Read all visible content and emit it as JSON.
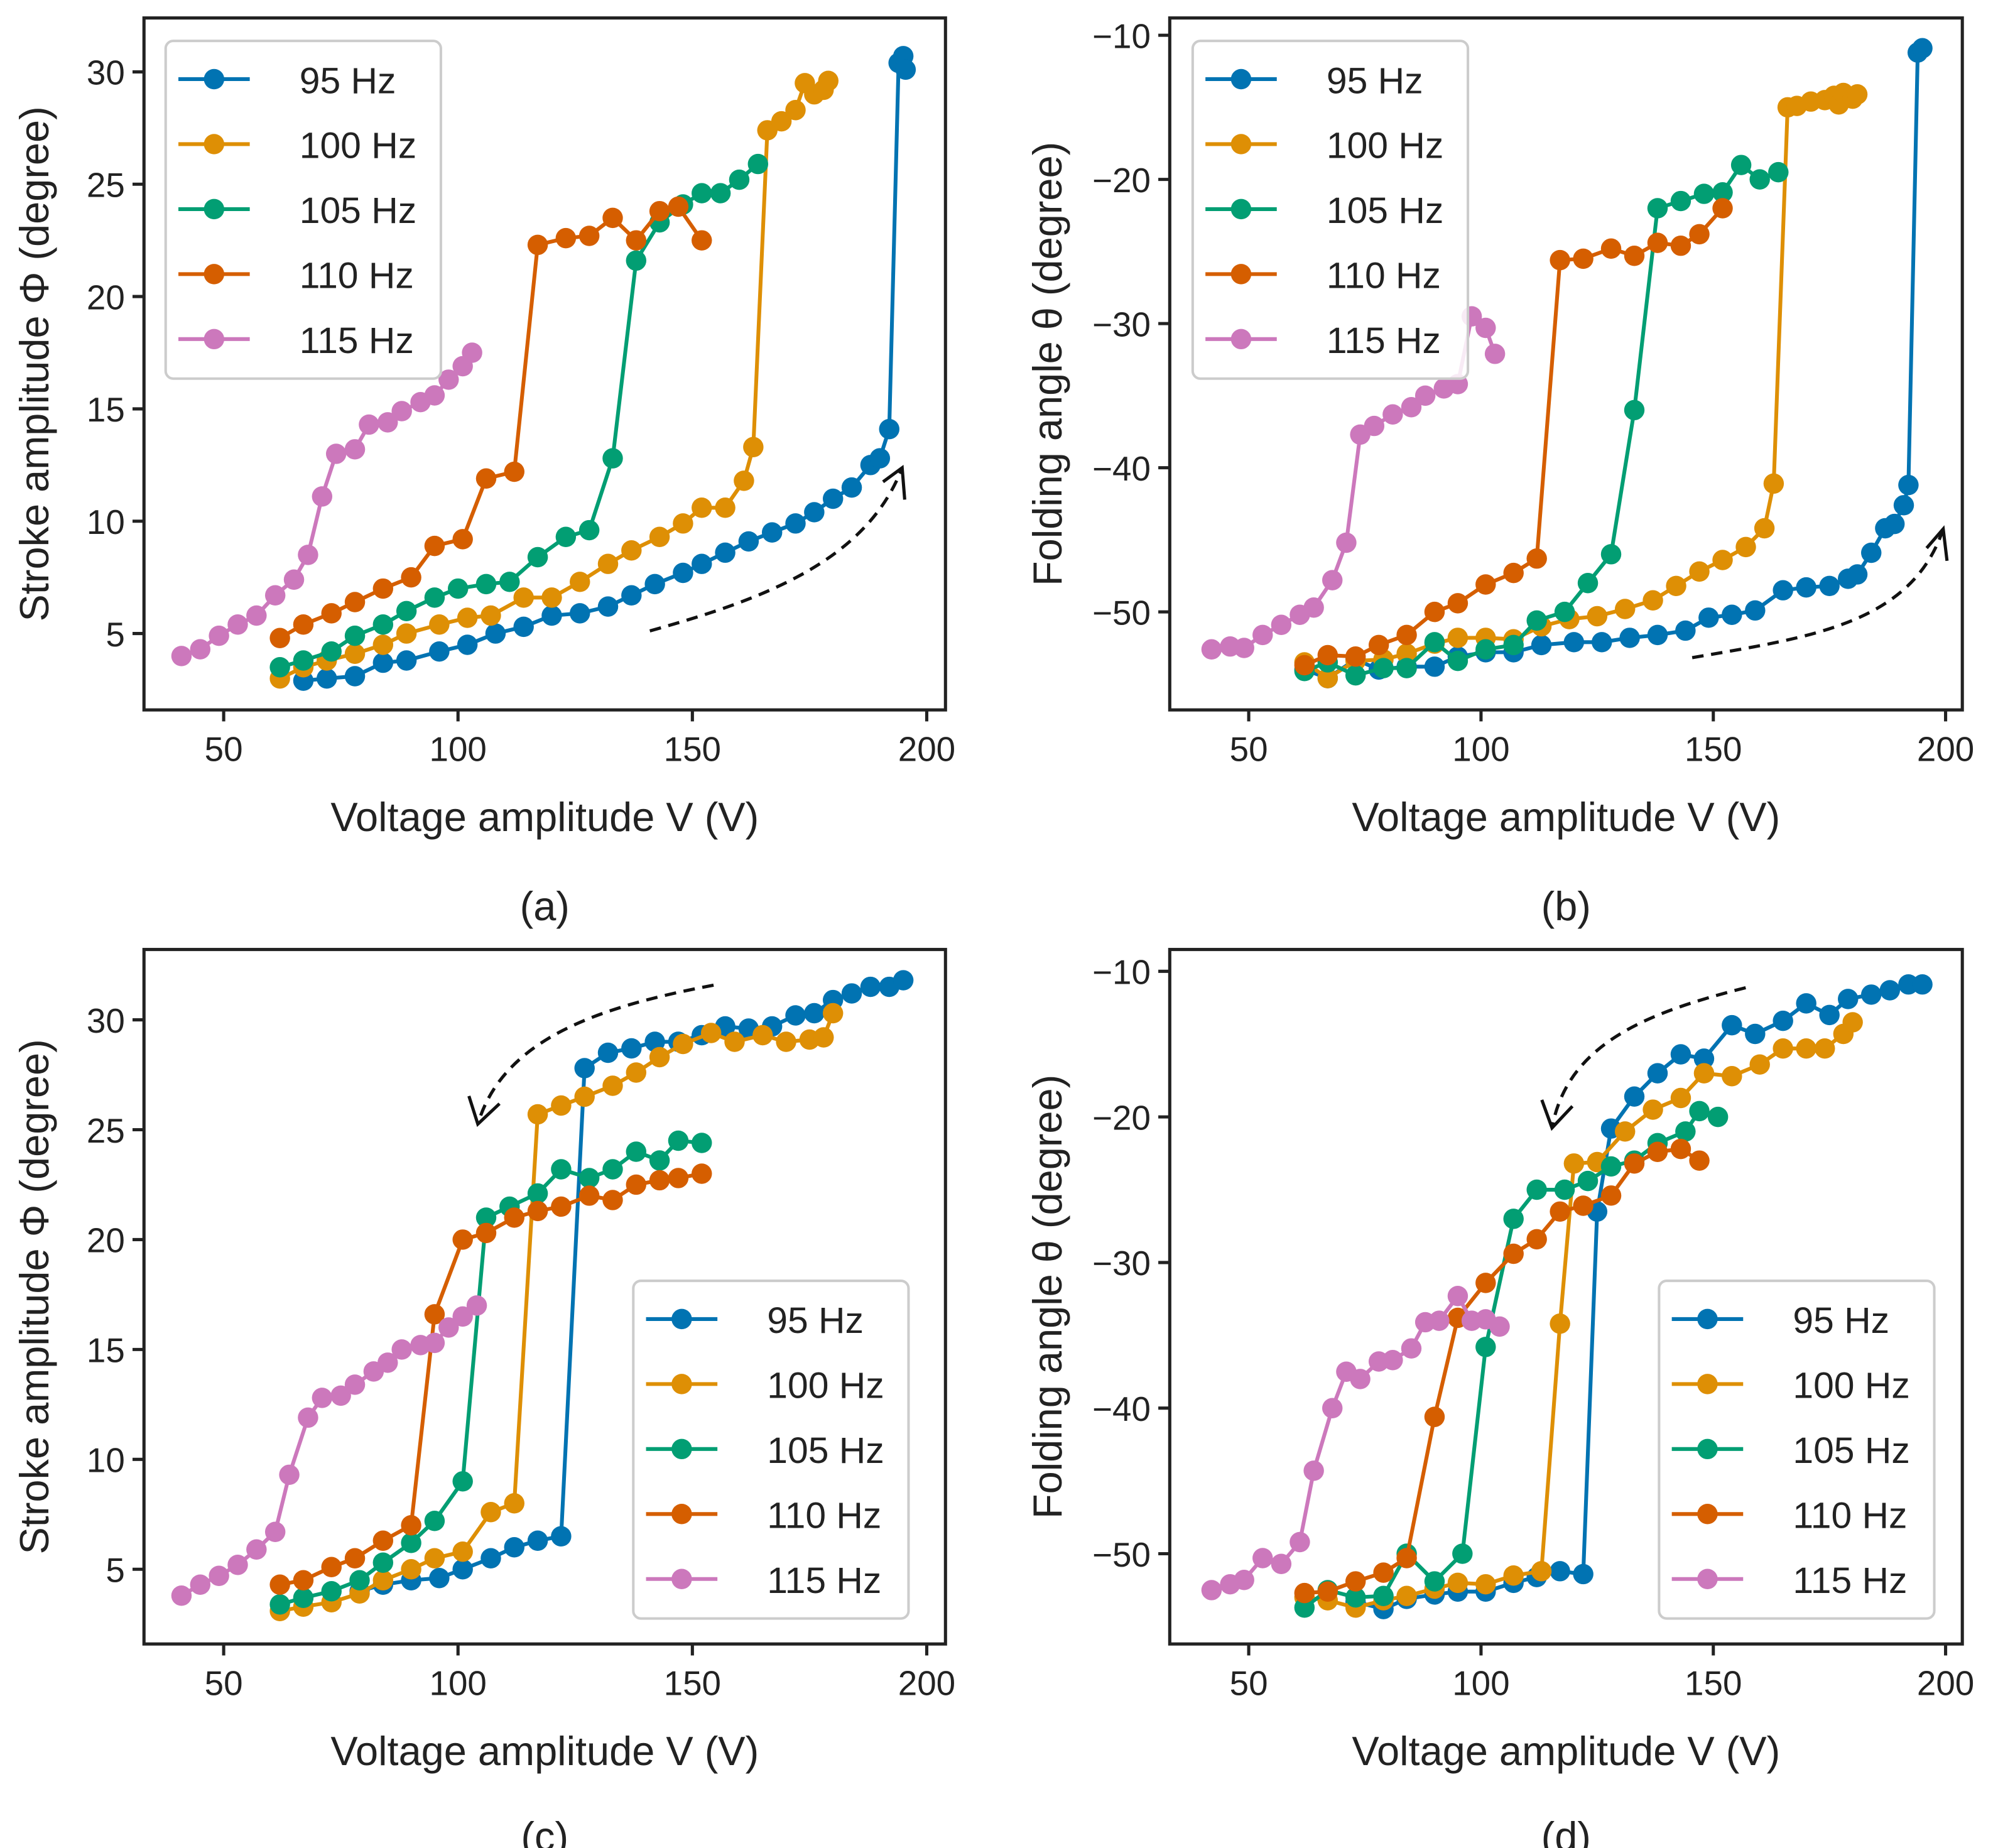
{
  "colors": {
    "95 Hz": "#0173b2",
    "100 Hz": "#de8f05",
    "105 Hz": "#029e73",
    "110 Hz": "#d55e00",
    "115 Hz": "#cc78bc"
  },
  "chart_data": [
    {
      "type": "line",
      "caption": "(a)",
      "xlabel": "Voltage amplitude V (V)",
      "ylabel": "Stroke amplitude Φ (degree)",
      "xlim": [
        33,
        204
      ],
      "ylim": [
        1.6,
        32.4
      ],
      "xticks": [
        50,
        100,
        150,
        200
      ],
      "yticks": [
        5,
        10,
        15,
        20,
        25,
        30
      ],
      "legend": "upper-left",
      "annotation": "dashed arrow pointing up-right (increasing voltage)",
      "series": [
        {
          "name": "95 Hz",
          "x": [
            67,
            72,
            78,
            84,
            89,
            96,
            102,
            108,
            114,
            120,
            126,
            132,
            137,
            142,
            148,
            152,
            157,
            162,
            167,
            172,
            176,
            180,
            184,
            188,
            190,
            192,
            194,
            195,
            195.5
          ],
          "y": [
            2.9,
            3.0,
            3.1,
            3.7,
            3.8,
            4.2,
            4.5,
            5.0,
            5.3,
            5.8,
            5.9,
            6.2,
            6.7,
            7.2,
            7.7,
            8.1,
            8.6,
            9.1,
            9.5,
            9.9,
            10.4,
            11.0,
            11.5,
            12.5,
            12.8,
            14.1,
            30.4,
            30.7,
            30.1
          ]
        },
        {
          "name": "100 Hz",
          "x": [
            62,
            67,
            72,
            78,
            84,
            89,
            96,
            102,
            107,
            114,
            120,
            126,
            132,
            137,
            143,
            148,
            152,
            157,
            161,
            163,
            166,
            169,
            172,
            174,
            176,
            178,
            179
          ],
          "y": [
            3.0,
            3.5,
            3.8,
            4.1,
            4.5,
            5.0,
            5.4,
            5.7,
            5.8,
            6.6,
            6.6,
            7.3,
            8.1,
            8.7,
            9.3,
            9.9,
            10.6,
            10.6,
            11.8,
            13.3,
            27.4,
            27.8,
            28.3,
            29.5,
            29.0,
            29.2,
            29.6
          ]
        },
        {
          "name": "105 Hz",
          "x": [
            62,
            67,
            73,
            78,
            84,
            89,
            95,
            100,
            106,
            111,
            117,
            123,
            128,
            133,
            138,
            143,
            148,
            152,
            156,
            160,
            164
          ],
          "y": [
            3.5,
            3.8,
            4.2,
            4.9,
            5.4,
            6.0,
            6.6,
            7.0,
            7.2,
            7.3,
            8.4,
            9.3,
            9.6,
            12.8,
            21.6,
            23.3,
            24.1,
            24.6,
            24.6,
            25.2,
            25.9
          ]
        },
        {
          "name": "110 Hz",
          "x": [
            62,
            67,
            73,
            78,
            84,
            90,
            95,
            101,
            106,
            112,
            117,
            123,
            128,
            133,
            138,
            143,
            147,
            152
          ],
          "y": [
            4.8,
            5.4,
            5.9,
            6.4,
            7.0,
            7.5,
            8.9,
            9.2,
            11.9,
            12.2,
            22.3,
            22.6,
            22.7,
            23.5,
            22.5,
            23.8,
            24.0,
            22.5
          ]
        },
        {
          "name": "115 Hz",
          "x": [
            41,
            45,
            49,
            53,
            57,
            61,
            65,
            68,
            71,
            74,
            78,
            81,
            85,
            88,
            92,
            95,
            98,
            101,
            103
          ],
          "y": [
            4.0,
            4.3,
            4.9,
            5.4,
            5.8,
            6.7,
            7.4,
            8.5,
            11.1,
            13.0,
            13.2,
            14.3,
            14.4,
            14.9,
            15.3,
            15.6,
            16.3,
            16.9,
            17.5
          ]
        }
      ]
    },
    {
      "type": "line",
      "caption": "(b)",
      "xlabel": "Voltage amplitude V (V)",
      "ylabel": "Folding angle θ (degree)",
      "xlim": [
        33,
        203.6
      ],
      "ylim": [
        -56.8,
        -8.8
      ],
      "xticks": [
        50,
        100,
        150,
        200
      ],
      "yticks": [
        -50,
        -40,
        -30,
        -20,
        -10
      ],
      "legend": "upper-left",
      "annotation": "dashed arrow pointing up-right (increasing voltage)",
      "series": [
        {
          "name": "95 Hz",
          "x": [
            62,
            67,
            73,
            78,
            84,
            90,
            95,
            101,
            107,
            113,
            120,
            126,
            132,
            138,
            144,
            149,
            154,
            159,
            165,
            170,
            175,
            179,
            181,
            184,
            187,
            189,
            191,
            192,
            194,
            195
          ],
          "y": [
            -54,
            -54.6,
            -53.3,
            -54,
            -53.8,
            -53.8,
            -53.1,
            -52.8,
            -52.8,
            -52.3,
            -52.1,
            -52.1,
            -51.8,
            -51.6,
            -51.3,
            -50.4,
            -50.2,
            -49.9,
            -48.5,
            -48.3,
            -48.2,
            -47.7,
            -47.4,
            -45.9,
            -44.2,
            -43.9,
            -42.6,
            -41.2,
            -11.2,
            -10.9
          ]
        },
        {
          "name": "100 Hz",
          "x": [
            62,
            67,
            73,
            79,
            84,
            90,
            95,
            101,
            107,
            113,
            119,
            125,
            131,
            137,
            142,
            147,
            152,
            157,
            161,
            163,
            166,
            168,
            171,
            174,
            176,
            177,
            178,
            180,
            181
          ],
          "y": [
            -53.5,
            -54.6,
            -53.4,
            -53.3,
            -52.9,
            -52.2,
            -51.8,
            -51.8,
            -51.9,
            -51.0,
            -50.5,
            -50.3,
            -49.8,
            -49.2,
            -48.2,
            -47.2,
            -46.4,
            -45.5,
            -44.2,
            -41.1,
            -15.0,
            -14.9,
            -14.6,
            -14.5,
            -14.2,
            -14.8,
            -14.0,
            -14.4,
            -14.1
          ]
        },
        {
          "name": "105 Hz",
          "x": [
            62,
            67,
            73,
            79,
            84,
            90,
            95,
            101,
            107,
            112,
            118,
            123,
            128,
            133,
            138,
            143,
            148,
            152,
            156,
            160,
            164
          ],
          "y": [
            -54.1,
            -53.5,
            -54.4,
            -53.9,
            -53.9,
            -52.1,
            -53.4,
            -52.6,
            -52.3,
            -50.6,
            -50.0,
            -48.0,
            -46.0,
            -36.0,
            -22.0,
            -21.5,
            -21.0,
            -20.9,
            -19.0,
            -20.0,
            -19.5
          ]
        },
        {
          "name": "110 Hz",
          "x": [
            62,
            67,
            73,
            78,
            84,
            90,
            95,
            101,
            107,
            112,
            117,
            122,
            128,
            133,
            138,
            143,
            147,
            152
          ],
          "y": [
            -53.7,
            -53.0,
            -53.1,
            -52.3,
            -51.6,
            -50.0,
            -49.4,
            -48.1,
            -47.3,
            -46.3,
            -25.6,
            -25.5,
            -24.8,
            -25.3,
            -24.4,
            -24.6,
            -23.8,
            -22.0
          ]
        },
        {
          "name": "115 Hz",
          "x": [
            42,
            46,
            49,
            53,
            57,
            61,
            64,
            68,
            71,
            74,
            77,
            81,
            85,
            88,
            92,
            95,
            98,
            101,
            103
          ],
          "y": [
            -52.6,
            -52.4,
            -52.5,
            -51.6,
            -50.9,
            -50.2,
            -49.7,
            -47.8,
            -45.2,
            -37.7,
            -37.1,
            -36.3,
            -35.8,
            -35.0,
            -34.5,
            -34.2,
            -29.5,
            -30.3,
            -32.1
          ]
        }
      ]
    },
    {
      "type": "line",
      "caption": "(c)",
      "xlabel": "Voltage amplitude V (V)",
      "ylabel": "Stroke amplitude Φ (degree)",
      "xlim": [
        33,
        204
      ],
      "ylim": [
        1.6,
        33.2
      ],
      "xticks": [
        50,
        100,
        150,
        200
      ],
      "yticks": [
        5,
        10,
        15,
        20,
        25,
        30
      ],
      "legend": "lower-right",
      "annotation": "dashed arrow pointing down-left (decreasing voltage)",
      "series": [
        {
          "name": "95 Hz",
          "x": [
            79,
            84,
            90,
            96,
            101,
            107,
            112,
            117,
            122,
            127,
            132,
            137,
            142,
            147,
            152,
            157,
            162,
            167,
            172,
            176,
            180,
            184,
            188,
            192,
            195
          ],
          "y": [
            4.0,
            4.3,
            4.5,
            4.6,
            5.0,
            5.5,
            6.0,
            6.3,
            6.5,
            27.8,
            28.5,
            28.7,
            29.0,
            29.0,
            29.3,
            29.7,
            29.6,
            29.7,
            30.2,
            30.3,
            30.9,
            31.2,
            31.5,
            31.5,
            31.8
          ]
        },
        {
          "name": "100 Hz",
          "x": [
            62,
            67,
            73,
            79,
            84,
            90,
            95,
            101,
            107,
            112,
            117,
            122,
            127,
            133,
            138,
            143,
            148,
            154,
            159,
            165,
            170,
            175,
            178,
            180
          ],
          "y": [
            3.1,
            3.3,
            3.5,
            3.9,
            4.5,
            5.0,
            5.5,
            5.8,
            7.6,
            8.0,
            25.7,
            26.1,
            26.5,
            27.0,
            27.6,
            28.3,
            28.9,
            29.4,
            29.0,
            29.3,
            29.0,
            29.1,
            29.2,
            30.3
          ]
        },
        {
          "name": "105 Hz",
          "x": [
            62,
            67,
            73,
            79,
            84,
            90,
            95,
            101,
            106,
            111,
            117,
            122,
            128,
            133,
            138,
            143,
            147,
            152
          ],
          "y": [
            3.4,
            3.7,
            4.0,
            4.5,
            5.3,
            6.2,
            7.2,
            9.0,
            21.0,
            21.5,
            22.1,
            23.2,
            22.8,
            23.2,
            24.0,
            23.6,
            24.5,
            24.4
          ]
        },
        {
          "name": "110 Hz",
          "x": [
            62,
            67,
            73,
            78,
            84,
            90,
            95,
            101,
            106,
            112,
            117,
            122,
            128,
            133,
            138,
            143,
            147,
            152
          ],
          "y": [
            4.3,
            4.5,
            5.1,
            5.5,
            6.3,
            7.0,
            16.6,
            20.0,
            20.3,
            21.0,
            21.3,
            21.5,
            22.0,
            21.8,
            22.5,
            22.7,
            22.8,
            23.0
          ]
        },
        {
          "name": "115 Hz",
          "x": [
            41,
            45,
            49,
            53,
            57,
            61,
            64,
            68,
            71,
            75,
            78,
            82,
            85,
            88,
            92,
            95,
            98,
            101,
            104
          ],
          "y": [
            3.8,
            4.3,
            4.7,
            5.2,
            5.9,
            6.7,
            9.3,
            11.9,
            12.8,
            12.9,
            13.4,
            14.0,
            14.4,
            15.0,
            15.2,
            15.3,
            16.0,
            16.5,
            17.0
          ]
        }
      ]
    },
    {
      "type": "line",
      "caption": "(d)",
      "xlabel": "Voltage amplitude V (V)",
      "ylabel": "Folding angle θ (degree)",
      "xlim": [
        33,
        203.6
      ],
      "ylim": [
        -56.2,
        -8.5
      ],
      "xticks": [
        50,
        100,
        150,
        200
      ],
      "yticks": [
        -50,
        -40,
        -30,
        -20,
        -10
      ],
      "legend": "lower-right",
      "annotation": "dashed arrow pointing down-left (decreasing voltage)",
      "series": [
        {
          "name": "95 Hz",
          "x": [
            73,
            79,
            84,
            90,
            95,
            101,
            107,
            112,
            117,
            122,
            125,
            128,
            133,
            138,
            143,
            148,
            154,
            159,
            165,
            170,
            175,
            179,
            184,
            188,
            192,
            195
          ],
          "y": [
            -53.3,
            -53.8,
            -53.1,
            -52.8,
            -52.6,
            -52.6,
            -52.0,
            -51.6,
            -51.2,
            -51.4,
            -26.5,
            -20.8,
            -18.6,
            -17.0,
            -15.7,
            -16.0,
            -13.7,
            -14.3,
            -13.4,
            -12.2,
            -13.0,
            -11.9,
            -11.6,
            -11.3,
            -10.9,
            -10.9
          ]
        },
        {
          "name": "100 Hz",
          "x": [
            62,
            67,
            73,
            79,
            84,
            90,
            95,
            101,
            107,
            113,
            117,
            120,
            125,
            131,
            137,
            143,
            148,
            154,
            160,
            165,
            170,
            174,
            178,
            180
          ],
          "y": [
            -53.0,
            -53.2,
            -53.7,
            -53.2,
            -52.9,
            -52.4,
            -52.0,
            -52.1,
            -51.5,
            -51.2,
            -34.2,
            -23.2,
            -23.1,
            -21.0,
            -19.5,
            -18.7,
            -17.0,
            -17.2,
            -16.4,
            -15.3,
            -15.3,
            -15.3,
            -14.3,
            -13.5
          ]
        },
        {
          "name": "105 Hz",
          "x": [
            62,
            67,
            73,
            79,
            84,
            90,
            96,
            101,
            107,
            112,
            118,
            123,
            128,
            133,
            138,
            144,
            147,
            151
          ],
          "y": [
            -53.7,
            -52.5,
            -53.0,
            -52.9,
            -50.0,
            -51.9,
            -50.0,
            -35.8,
            -27.0,
            -25.0,
            -25.0,
            -24.4,
            -23.4,
            -23.0,
            -21.8,
            -21.0,
            -19.6,
            -20.0
          ]
        },
        {
          "name": "110 Hz",
          "x": [
            62,
            67,
            73,
            79,
            84,
            90,
            95,
            101,
            107,
            112,
            117,
            122,
            128,
            133,
            138,
            143,
            147
          ],
          "y": [
            -52.7,
            -52.6,
            -51.9,
            -51.3,
            -50.3,
            -40.6,
            -33.8,
            -31.4,
            -29.4,
            -28.4,
            -26.5,
            -26.1,
            -25.4,
            -23.2,
            -22.4,
            -22.2,
            -23.0
          ]
        },
        {
          "name": "115 Hz",
          "x": [
            42,
            46,
            49,
            53,
            57,
            61,
            64,
            68,
            71,
            74,
            78,
            81,
            85,
            88,
            91,
            95,
            98,
            101,
            104
          ],
          "y": [
            -52.5,
            -52.1,
            -51.8,
            -50.3,
            -50.7,
            -49.2,
            -44.3,
            -40.0,
            -37.5,
            -38.0,
            -36.8,
            -36.7,
            -35.9,
            -34.1,
            -34.0,
            -32.3,
            -34.0,
            -33.9,
            -34.4
          ]
        }
      ]
    }
  ]
}
